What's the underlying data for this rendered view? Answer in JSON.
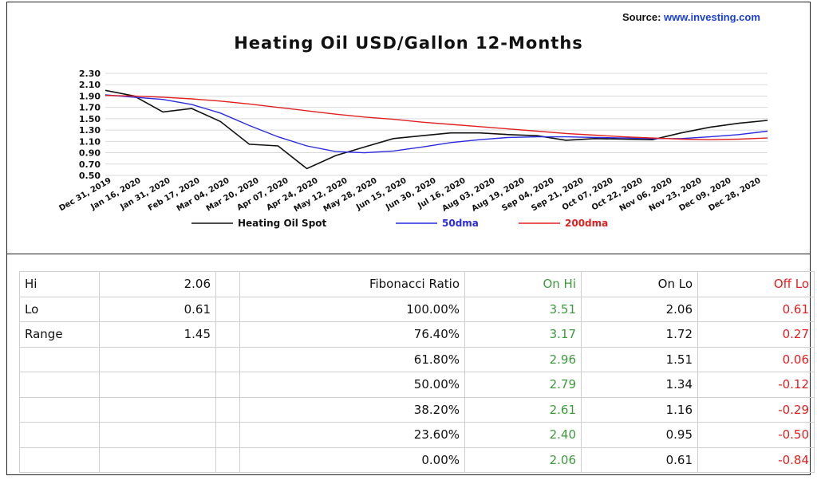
{
  "source": {
    "label": "Source:",
    "url": "www.investing.com"
  },
  "chart_data": {
    "type": "line",
    "title": "Heating Oil USD/Gallon 12-Months",
    "ylim": [
      0.5,
      2.3
    ],
    "yticks": [
      "2.30",
      "2.10",
      "1.90",
      "1.70",
      "1.50",
      "1.30",
      "1.10",
      "0.90",
      "0.70",
      "0.50"
    ],
    "xticks": [
      "Dec 31, 2019",
      "Jan 16, 2020",
      "Jan 31, 2020",
      "Feb 17, 2020",
      "Mar 04, 2020",
      "Mar 20, 2020",
      "Apr 07, 2020",
      "Apr 24, 2020",
      "May 12, 2020",
      "May 28, 2020",
      "Jun 15, 2020",
      "Jun 30, 2020",
      "Jul 16, 2020",
      "Aug 03, 2020",
      "Aug 19, 2020",
      "Sep 04, 2020",
      "Sep 21, 2020",
      "Oct 07, 2020",
      "Oct 22, 2020",
      "Nov 06, 2020",
      "Nov 23, 2020",
      "Dec 09, 2020",
      "Dec 28, 2020"
    ],
    "grid": true,
    "legend_position": "bottom",
    "series": [
      {
        "name": "Heating Oil Spot",
        "color": "#111111",
        "values": [
          2.0,
          1.9,
          1.62,
          1.68,
          1.45,
          1.05,
          1.02,
          0.62,
          0.85,
          1.0,
          1.15,
          1.2,
          1.25,
          1.25,
          1.22,
          1.2,
          1.12,
          1.15,
          1.14,
          1.13,
          1.25,
          1.35,
          1.42,
          1.47
        ]
      },
      {
        "name": "50dma",
        "color": "#2a2ae0",
        "values": [
          1.92,
          1.88,
          1.84,
          1.75,
          1.6,
          1.38,
          1.18,
          1.02,
          0.92,
          0.9,
          0.93,
          1.0,
          1.08,
          1.13,
          1.17,
          1.18,
          1.18,
          1.17,
          1.16,
          1.15,
          1.15,
          1.18,
          1.22,
          1.28
        ]
      },
      {
        "name": "200dma",
        "color": "#e02020",
        "values": [
          1.91,
          1.9,
          1.88,
          1.85,
          1.81,
          1.76,
          1.7,
          1.64,
          1.58,
          1.53,
          1.49,
          1.44,
          1.4,
          1.36,
          1.32,
          1.28,
          1.24,
          1.21,
          1.18,
          1.16,
          1.14,
          1.13,
          1.14,
          1.16
        ]
      }
    ]
  },
  "table": {
    "rows": [
      {
        "label": "Hi",
        "value": "2.06",
        "ratio_label": "Fibonacci  Ratio",
        "on_hi": "On Hi",
        "on_lo": "On Lo",
        "off_lo": "Off Lo"
      },
      {
        "label": "Lo",
        "value": "0.61",
        "ratio_label": "100.00%",
        "on_hi": "3.51",
        "on_lo": "2.06",
        "off_lo": "0.61"
      },
      {
        "label": "Range",
        "value": "1.45",
        "ratio_label": "76.40%",
        "on_hi": "3.17",
        "on_lo": "1.72",
        "off_lo": "0.27"
      },
      {
        "label": "",
        "value": "",
        "ratio_label": "61.80%",
        "on_hi": "2.96",
        "on_lo": "1.51",
        "off_lo": "0.06"
      },
      {
        "label": "",
        "value": "",
        "ratio_label": "50.00%",
        "on_hi": "2.79",
        "on_lo": "1.34",
        "off_lo": "-0.12"
      },
      {
        "label": "",
        "value": "",
        "ratio_label": "38.20%",
        "on_hi": "2.61",
        "on_lo": "1.16",
        "off_lo": "-0.29"
      },
      {
        "label": "",
        "value": "",
        "ratio_label": "23.60%",
        "on_hi": "2.40",
        "on_lo": "0.95",
        "off_lo": "-0.50"
      },
      {
        "label": "",
        "value": "",
        "ratio_label": "0.00%",
        "on_hi": "2.06",
        "on_lo": "0.61",
        "off_lo": "-0.84"
      }
    ]
  }
}
